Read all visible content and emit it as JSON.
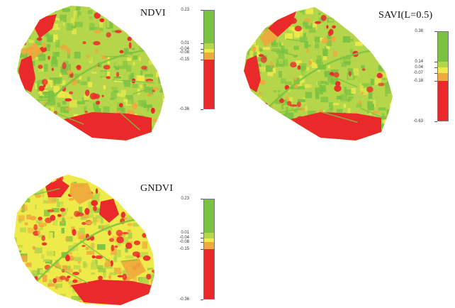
{
  "colors": {
    "green": "#7cc242",
    "light_green": "#b5d64a",
    "yellow": "#eeea4a",
    "orange": "#f0a93c",
    "red": "#ea2a2a"
  },
  "maps": [
    {
      "id": "ndvi",
      "title": "NDVI",
      "legend_labels": [
        "0.23",
        "0.01",
        "-0.04",
        "-0.08",
        "-0.15",
        "-0.36"
      ],
      "legend_colors": [
        "green",
        "light_green",
        "yellow",
        "orange",
        "red"
      ]
    },
    {
      "id": "savi",
      "title": "SAVI(L=0.5)",
      "legend_labels": [
        "0.38",
        "0.14",
        "0.04",
        "-0.07",
        "-0.18",
        "-0.63"
      ],
      "legend_colors": [
        "green",
        "light_green",
        "yellow",
        "orange",
        "red"
      ]
    },
    {
      "id": "gndvi",
      "title": "GNDVI",
      "legend_labels": [
        "0.23",
        "0.01",
        "-0.04",
        "-0.08",
        "-0.15",
        "-0.36"
      ],
      "legend_colors": [
        "green",
        "light_green",
        "yellow",
        "orange",
        "red"
      ]
    }
  ]
}
